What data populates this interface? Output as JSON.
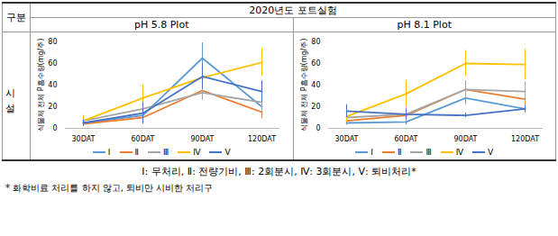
{
  "table": {
    "header": "구분",
    "title": "2020년도 포트실험",
    "row_label": "시설",
    "note": "Ⅰ: 무처리, Ⅱ: 전량기비, Ⅲ: 2회분시, Ⅳ: 3회분시, Ⅴ: 퇴비처리*",
    "footnote": "* 화학비료 처리를 하지 않고, 퇴비만 시비한 처리구"
  },
  "chart_data": [
    {
      "type": "line",
      "title": "pH 5.8 Plot",
      "y_label": "식물체 전체 P흡수량(mg/주)",
      "categories": [
        "30DAT",
        "60DAT",
        "90DAT",
        "120DAT"
      ],
      "ylim": [
        0,
        80
      ],
      "yticks": [
        0,
        20,
        40,
        60,
        80
      ],
      "grid": false,
      "legend": "bottom",
      "series": [
        {
          "name": "Ⅰ",
          "color": "#5b9bd5",
          "values": [
            5,
            12,
            65,
            20
          ],
          "errors": [
            3,
            6,
            14,
            8
          ]
        },
        {
          "name": "Ⅱ",
          "color": "#ed7d31",
          "values": [
            4,
            10,
            35,
            15
          ],
          "errors": [
            2,
            5,
            8,
            6
          ]
        },
        {
          "name": "Ⅲ",
          "color": "#a5a5a5",
          "values": [
            7,
            18,
            33,
            24
          ],
          "errors": [
            4,
            8,
            7,
            9
          ]
        },
        {
          "name": "Ⅳ",
          "color": "#ffc000",
          "values": [
            7,
            28,
            47,
            61
          ],
          "errors": [
            5,
            12,
            10,
            13
          ]
        },
        {
          "name": "Ⅴ",
          "color": "#4472c4",
          "values": [
            5,
            14,
            48,
            34
          ],
          "errors": [
            3,
            10,
            12,
            10
          ]
        }
      ]
    },
    {
      "type": "line",
      "title": "pH 8.1 Plot",
      "y_label": "식물체 전체 P흡수량(mg/주)",
      "categories": [
        "30DAT",
        "60DAT",
        "90DAT",
        "120DAT"
      ],
      "ylim": [
        0,
        80
      ],
      "yticks": [
        0,
        20,
        40,
        60,
        80
      ],
      "grid": false,
      "legend": "bottom",
      "series": [
        {
          "name": "Ⅰ",
          "color": "#5b9bd5",
          "values": [
            5,
            6,
            28,
            18
          ],
          "errors": [
            2,
            3,
            6,
            4
          ]
        },
        {
          "name": "Ⅱ",
          "color": "#ed7d31",
          "values": [
            7,
            12,
            36,
            27
          ],
          "errors": [
            3,
            5,
            8,
            7
          ]
        },
        {
          "name": "Ⅲ",
          "color": "#a5a5a5",
          "values": [
            10,
            13,
            36,
            34
          ],
          "errors": [
            4,
            6,
            7,
            9
          ]
        },
        {
          "name": "Ⅳ",
          "color": "#ffc000",
          "values": [
            11,
            32,
            60,
            59
          ],
          "errors": [
            5,
            12,
            12,
            14
          ]
        },
        {
          "name": "Ⅴ",
          "color": "#4472c4",
          "values": [
            16,
            13,
            12,
            18
          ],
          "errors": [
            6,
            5,
            2,
            3
          ]
        }
      ]
    }
  ]
}
